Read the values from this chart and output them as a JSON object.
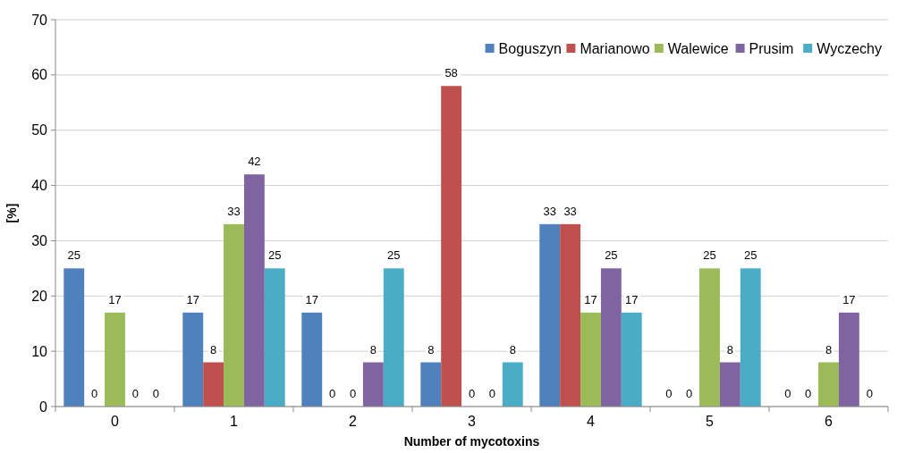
{
  "chart_data": {
    "type": "bar",
    "xlabel": "Number of mycotoxins",
    "ylabel": "[%]",
    "categories": [
      "0",
      "1",
      "2",
      "3",
      "4",
      "5",
      "6"
    ],
    "series": [
      {
        "name": "Boguszyn",
        "color": "#4f81bd",
        "values": [
          25,
          17,
          17,
          8,
          33,
          0,
          0
        ]
      },
      {
        "name": "Marianowo",
        "color": "#c0504d",
        "values": [
          0,
          8,
          0,
          58,
          33,
          0,
          0
        ]
      },
      {
        "name": "Walewice",
        "color": "#9bbb59",
        "values": [
          17,
          33,
          0,
          0,
          17,
          25,
          8
        ]
      },
      {
        "name": "Prusim",
        "color": "#8064a2",
        "values": [
          0,
          42,
          8,
          0,
          25,
          8,
          17
        ]
      },
      {
        "name": "Wyczechy",
        "color": "#4bacc6",
        "values": [
          0,
          25,
          25,
          8,
          17,
          25,
          0
        ]
      }
    ],
    "ylim": [
      0,
      70
    ],
    "yticks": [
      0,
      10,
      20,
      30,
      40,
      50,
      60,
      70
    ],
    "grid": "y",
    "legend": "top right",
    "data_labels": true
  }
}
